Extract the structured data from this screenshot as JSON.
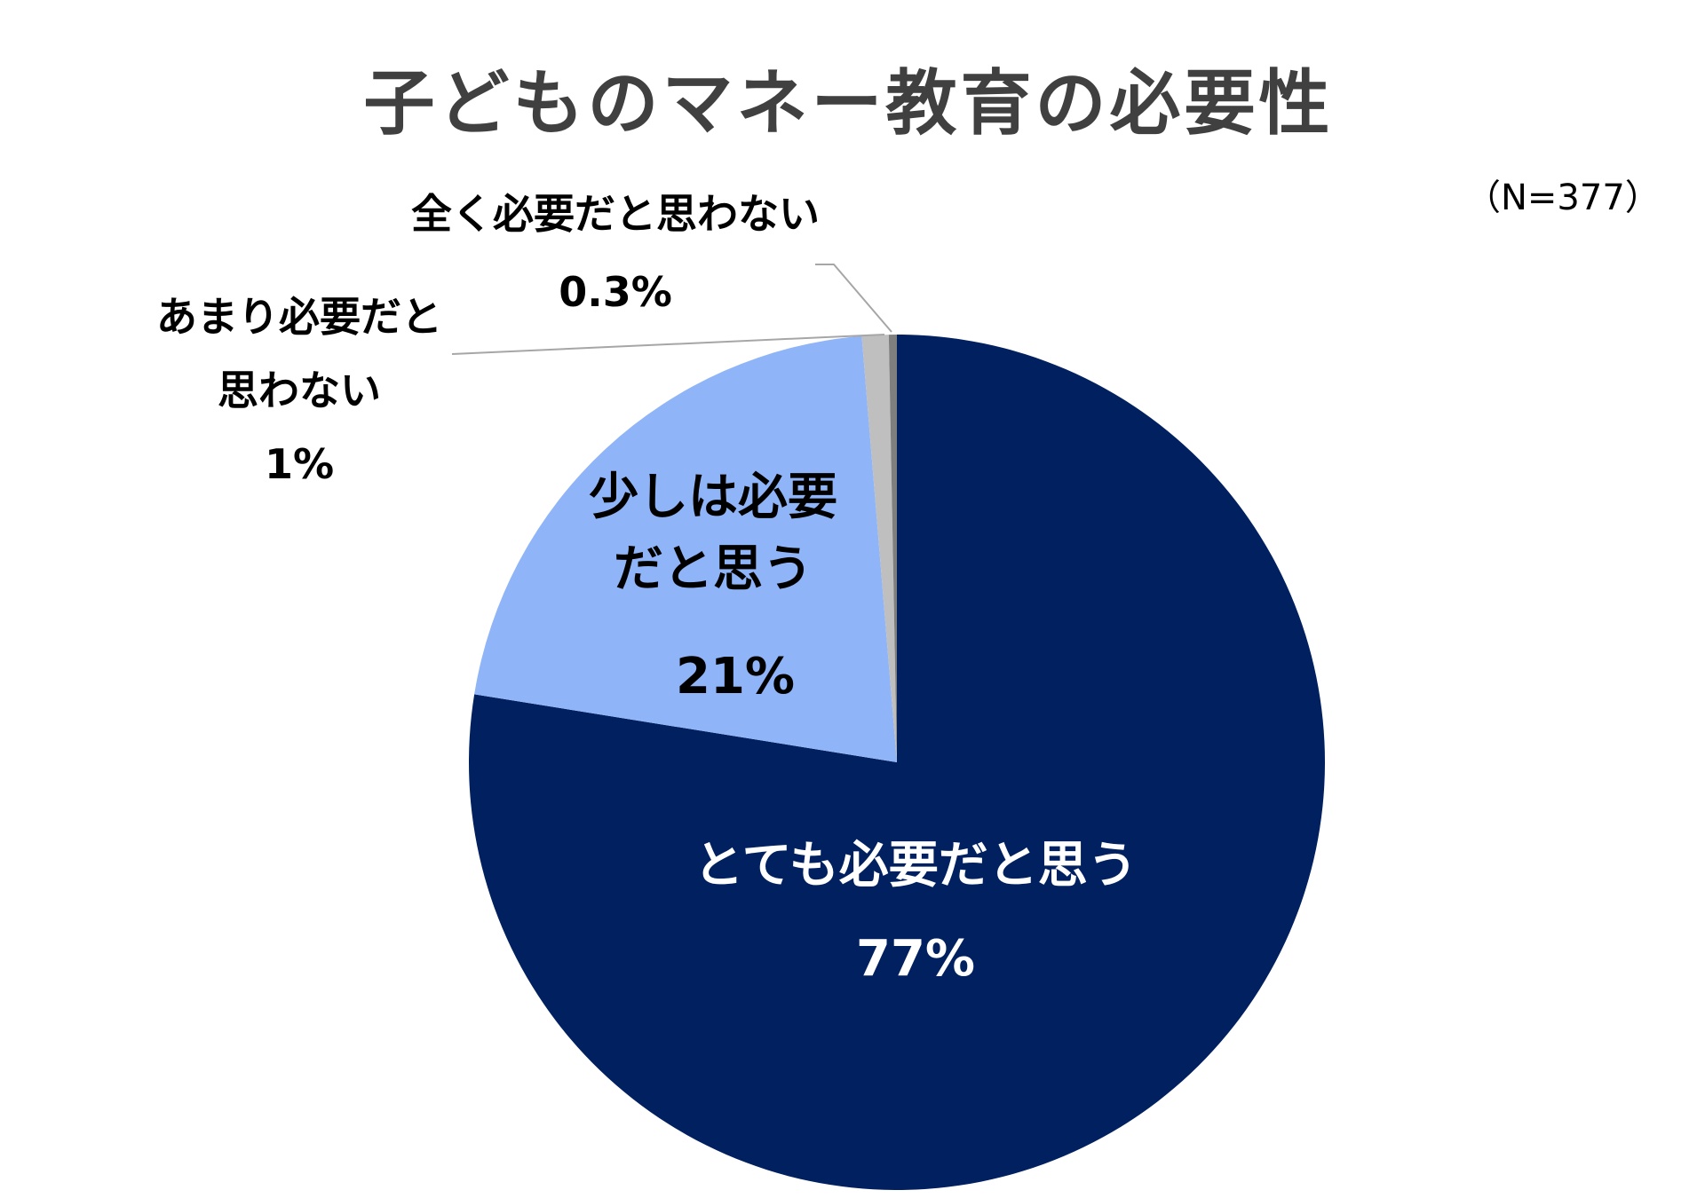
{
  "chart_data": {
    "type": "pie",
    "title": "子どものマネー教育の必要性",
    "subtitle": "（N=377）",
    "categories": [
      "とても必要だと思う",
      "少しは必要だと思う",
      "あまり必要だと思わない",
      "全く必要だと思わない"
    ],
    "values": [
      77,
      21,
      1,
      0.3
    ],
    "value_labels": [
      "77%",
      "21%",
      "1%",
      "0.3%"
    ],
    "colors": [
      "#002060",
      "#8fb4f7",
      "#bfbfbf",
      "#7f7f7f"
    ]
  }
}
